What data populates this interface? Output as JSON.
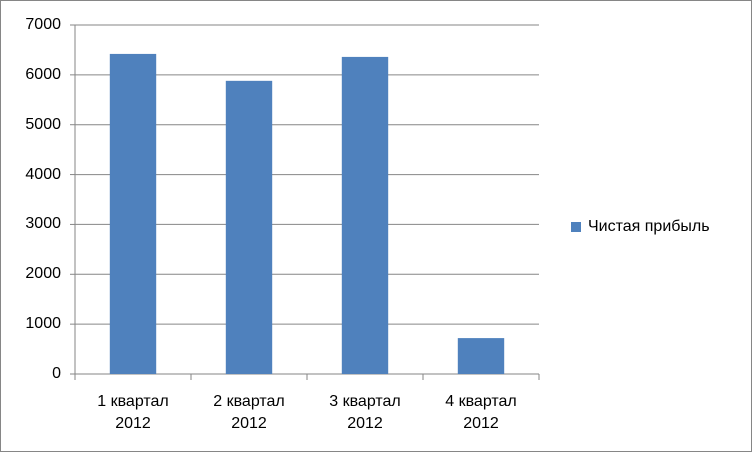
{
  "chart_data": {
    "type": "bar",
    "categories": [
      "1 квартал 2012",
      "2 квартал 2012",
      "3 квартал 2012",
      "4 квартал 2012"
    ],
    "series": [
      {
        "name": "Чистая прибыль",
        "color": "#4f81bd",
        "values": [
          6420,
          5880,
          6360,
          720
        ]
      }
    ],
    "ylim": [
      0,
      7000
    ],
    "yticks": [
      0,
      1000,
      2000,
      3000,
      4000,
      5000,
      6000,
      7000
    ],
    "grid": true,
    "legend": "right"
  }
}
